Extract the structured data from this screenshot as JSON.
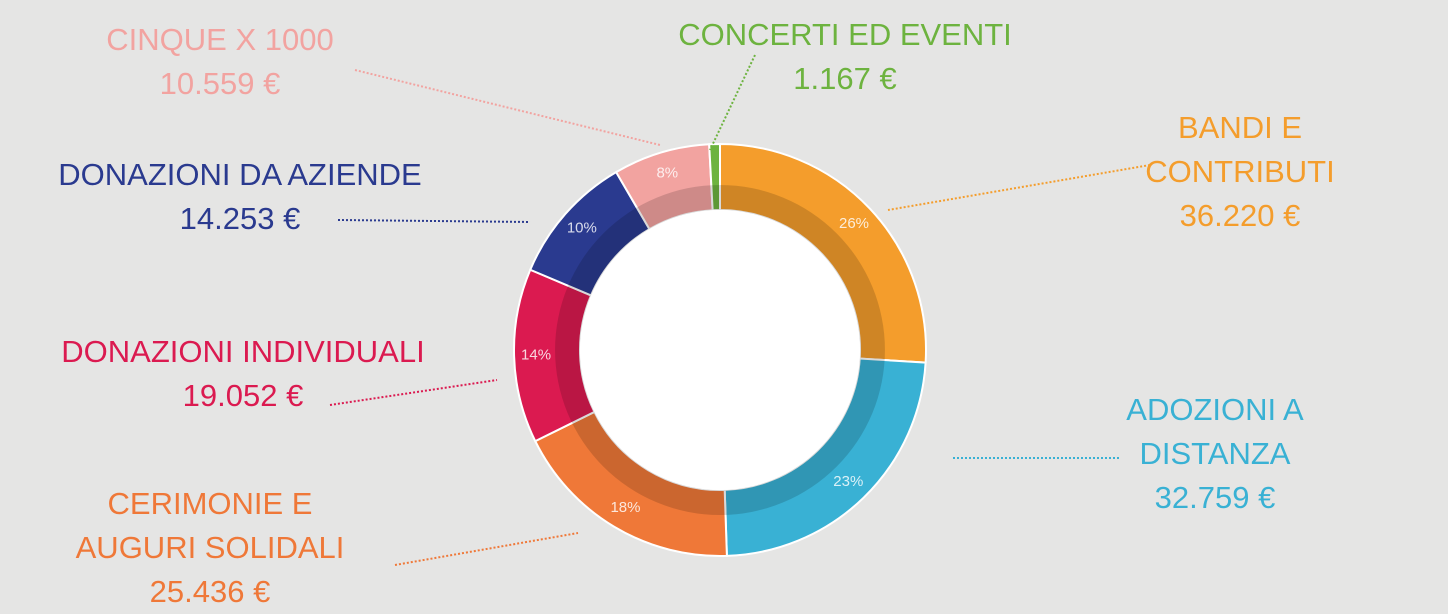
{
  "chart_data": {
    "type": "donut",
    "categories": [
      "BANDI E CONTRIBUTI",
      "ADOZIONI A DISTANZA",
      "CERIMONIE E\nAUGURI SOLIDALI",
      "DONAZIONI INDIVIDUALI",
      "DONAZIONI DA AZIENDE",
      "CINQUE X 1000",
      "CONCERTI ED EVENTI"
    ],
    "values": [
      36220,
      32759,
      25436,
      19052,
      14253,
      10559,
      1167
    ],
    "value_labels": [
      "36.220 €",
      "32.759 €",
      "25.436 €",
      "19.052 €",
      "14.253 €",
      "10.559 €",
      "1.167 €"
    ],
    "percent_labels": [
      "26%",
      "23%",
      "18%",
      "14%",
      "10%",
      "8%",
      null
    ],
    "colors": [
      "#f49d2c",
      "#39b1d4",
      "#ef7838",
      "#db1a50",
      "#2a3a8f",
      "#f2a3a0",
      "#6db33f"
    ]
  }
}
